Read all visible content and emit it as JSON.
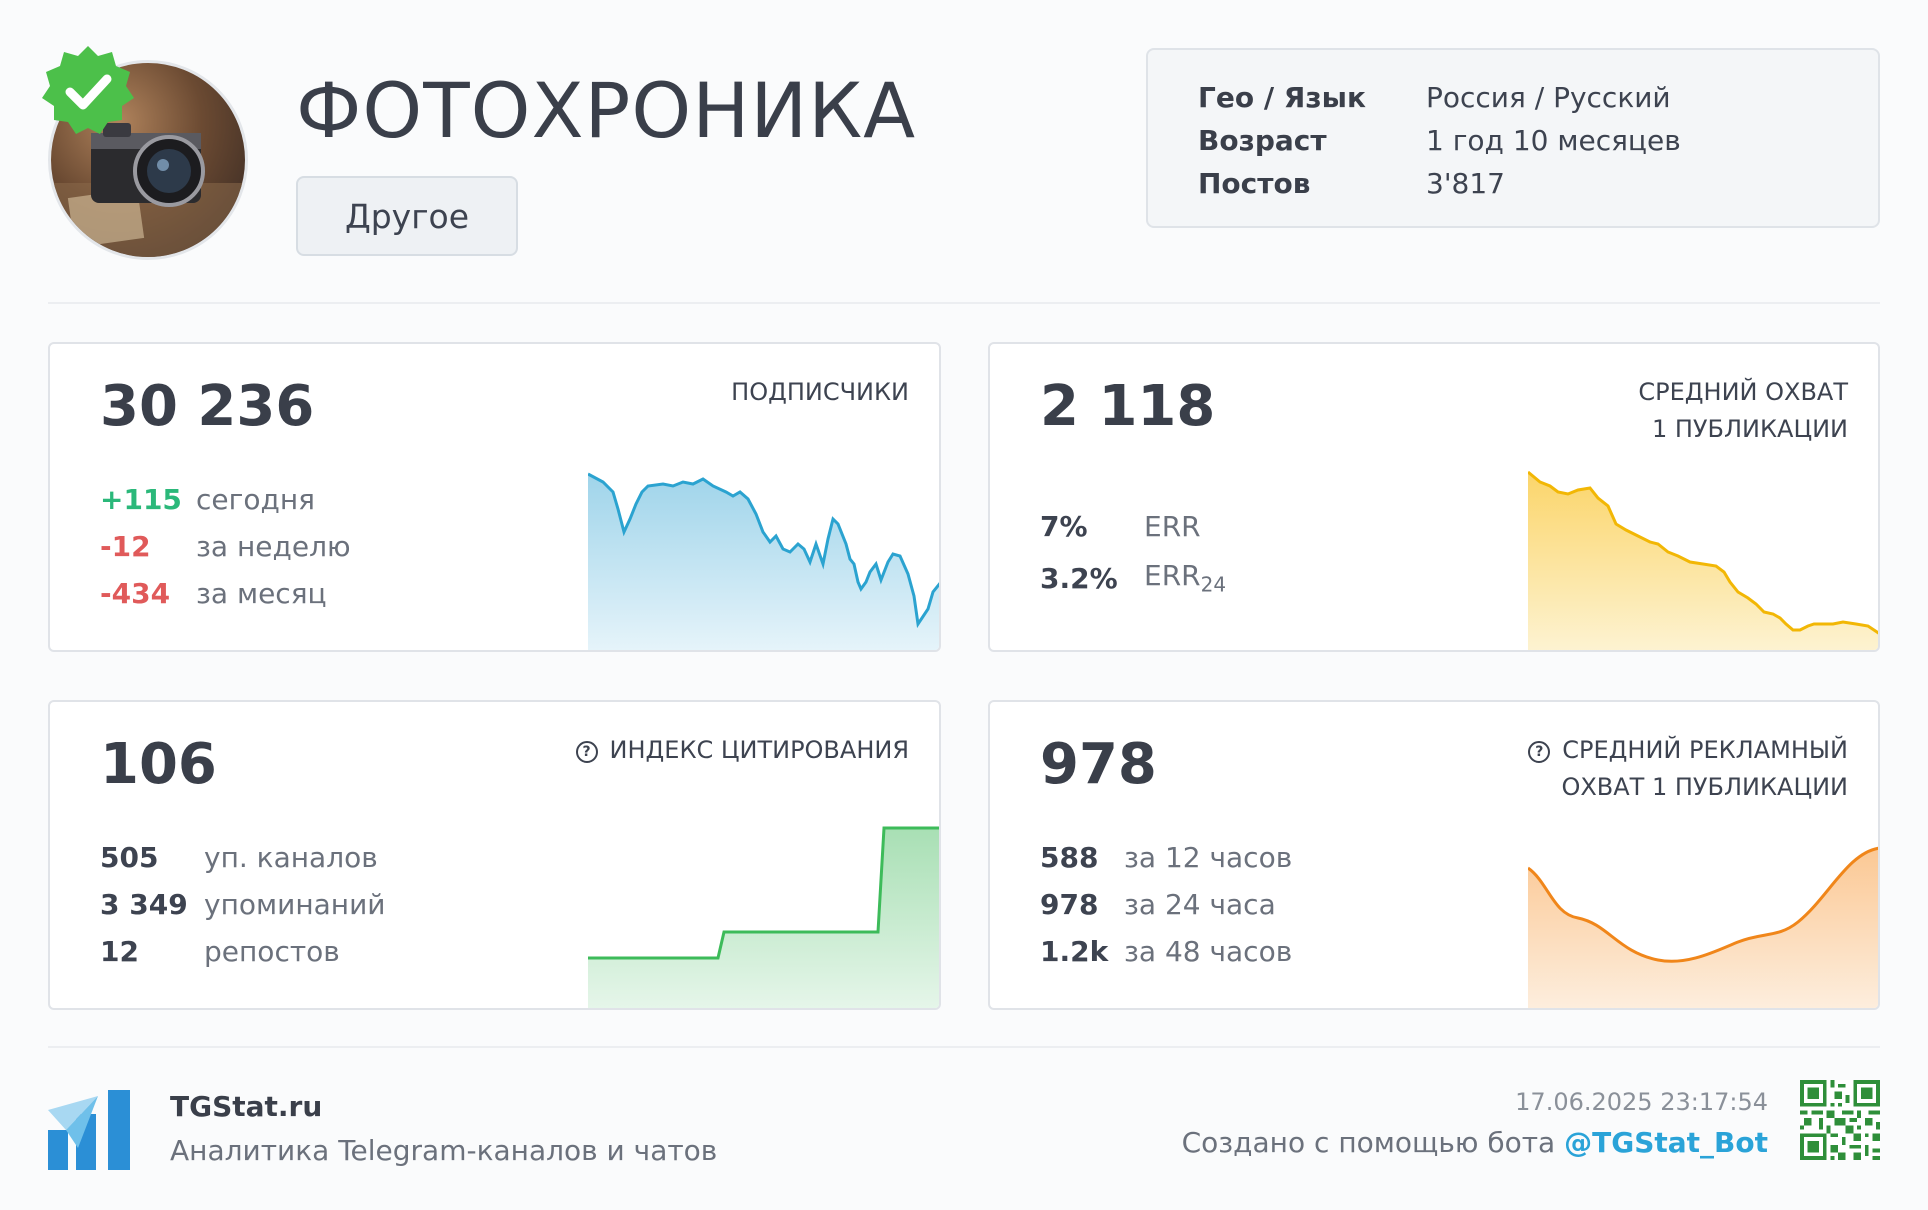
{
  "header": {
    "title": "ФОТОХРОНИКА",
    "category": "Другое",
    "info": [
      {
        "key": "Гео / Язык",
        "value": "Россия / Русский"
      },
      {
        "key": "Возраст",
        "value": "1 год 10 месяцев"
      },
      {
        "key": "Постов",
        "value": "3'817"
      }
    ]
  },
  "cards": {
    "subscribers": {
      "value": "30 236",
      "label": "ПОДПИСЧИКИ",
      "rows": [
        {
          "num": "+115",
          "text": "сегодня"
        },
        {
          "num": "-12",
          "text": "за неделю"
        },
        {
          "num": "-434",
          "text": "за месяц"
        }
      ]
    },
    "reach": {
      "value": "2 118",
      "label_line1": "СРЕДНИЙ ОХВАТ",
      "label_line2": "1 ПУБЛИКАЦИИ",
      "rows": [
        {
          "num": "7%",
          "text": "ERR"
        },
        {
          "num": "3.2%",
          "text": "ERR",
          "sub": "24"
        }
      ]
    },
    "citation": {
      "value": "106",
      "label": "ИНДЕКС ЦИТИРОВАНИЯ",
      "rows": [
        {
          "num": "505",
          "text": "уп. каналов"
        },
        {
          "num": "3 349",
          "text": "упоминаний"
        },
        {
          "num": "12",
          "text": "репостов"
        }
      ]
    },
    "ad_reach": {
      "value": "978",
      "label_line1": "СРЕДНИЙ РЕКЛАМНЫЙ",
      "label_line2": "ОХВАТ 1 ПУБЛИКАЦИИ",
      "rows": [
        {
          "num": "588",
          "text": "за 12 часов"
        },
        {
          "num": "978",
          "text": "за 24 часа"
        },
        {
          "num": "1.2k",
          "text": "за 48 часов"
        }
      ]
    }
  },
  "colors": {
    "subscribers_line": "#2ba3d0",
    "reach_line": "#f2b705",
    "citation_line": "#3dbb5a",
    "ad_line": "#f0861a",
    "positive": "#2bb87a",
    "negative": "#e05a5a",
    "link": "#2aa3d8"
  },
  "footer": {
    "brand": "TGStat.ru",
    "tagline": "Аналитика Telegram-каналов и чатов",
    "timestamp": "17.06.2025 23:17:54",
    "created_prefix": "Создано с помощью бота",
    "bot_link": "@TGStat_Bot"
  },
  "icons": {
    "verified": "verified-badge-icon",
    "help": "help-circle-icon",
    "logo": "tgstat-logo-icon",
    "qr": "qr-code-icon"
  }
}
